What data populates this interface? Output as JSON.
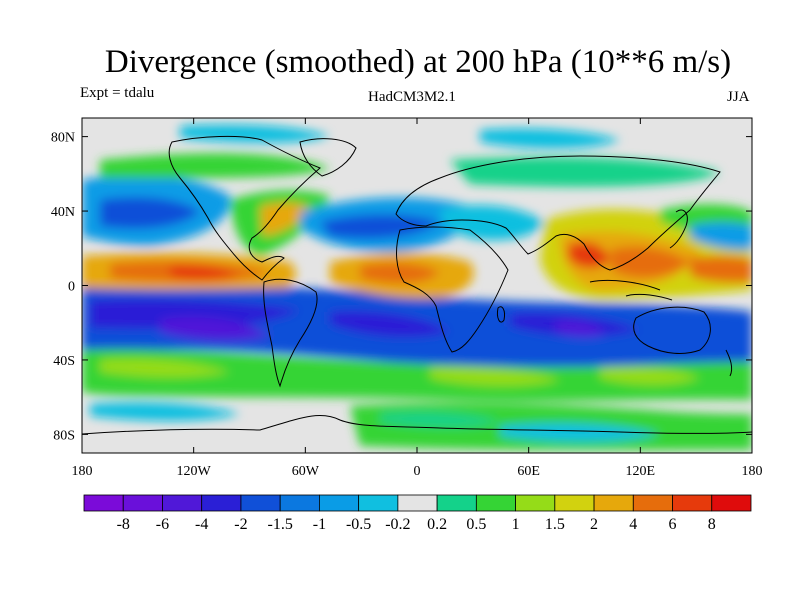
{
  "title": "Divergence (smoothed) at 200 hPa (10**6 m/s)",
  "expt": "Expt = tdalu",
  "model": "HadCM3M2.1",
  "season": "JJA",
  "axes": {
    "x_ticks": [
      {
        "value": -180,
        "label": "180"
      },
      {
        "value": -120,
        "label": "120W"
      },
      {
        "value": -60,
        "label": "60W"
      },
      {
        "value": 0,
        "label": "0"
      },
      {
        "value": 60,
        "label": "60E"
      },
      {
        "value": 120,
        "label": "120E"
      },
      {
        "value": 180,
        "label": "180"
      }
    ],
    "y_ticks": [
      {
        "value": 80,
        "label": "80N"
      },
      {
        "value": 40,
        "label": "40N"
      },
      {
        "value": 0,
        "label": "0"
      },
      {
        "value": -40,
        "label": "40S"
      },
      {
        "value": -80,
        "label": "80S"
      }
    ]
  },
  "colorbar": {
    "colors": [
      "#7b0bd9",
      "#6a10da",
      "#5018d8",
      "#2a1fd6",
      "#1050d8",
      "#0b78e0",
      "#0a9ce6",
      "#10bfe0",
      "#e4e4e4",
      "#14d28a",
      "#35d435",
      "#95dc18",
      "#d2d20f",
      "#e6a80c",
      "#e66d0c",
      "#e63a0c",
      "#df0c0c"
    ],
    "labels": [
      "-8",
      "-6",
      "-4",
      "-2",
      "-1.5",
      "-1",
      "-0.5",
      "-0.2",
      "0.2",
      "0.5",
      "1",
      "1.5",
      "2",
      "4",
      "6",
      "8"
    ]
  },
  "chart_data": {
    "type": "heatmap",
    "title": "Divergence (smoothed) at 200 hPa (10**6 m/s)",
    "projection": "cylindrical equidistant",
    "xlim": [
      -180,
      180
    ],
    "ylim": [
      -90,
      90
    ],
    "levels": [
      -8,
      -6,
      -4,
      -2,
      -1.5,
      -1,
      -0.5,
      -0.2,
      0.2,
      0.5,
      1,
      1.5,
      2,
      4,
      6,
      8
    ],
    "features": [
      {
        "lon": -110,
        "lat": 8,
        "value": 6
      },
      {
        "lon": -150,
        "lat": 8,
        "value": 4
      },
      {
        "lon": -10,
        "lat": 5,
        "value": 6
      },
      {
        "lon": 20,
        "lat": 3,
        "value": 4
      },
      {
        "lon": 90,
        "lat": 15,
        "value": 8
      },
      {
        "lon": 115,
        "lat": 10,
        "value": 4
      },
      {
        "lon": 150,
        "lat": 8,
        "value": 4
      },
      {
        "lon": 135,
        "lat": 30,
        "value": 2
      },
      {
        "lon": 90,
        "lat": 32,
        "value": 1.5
      },
      {
        "lon": -90,
        "lat": 30,
        "value": 2
      },
      {
        "lon": -90,
        "lat": -10,
        "value": -4
      },
      {
        "lon": -150,
        "lat": -5,
        "value": -2
      },
      {
        "lon": -30,
        "lat": -10,
        "value": -2
      },
      {
        "lon": 40,
        "lat": -15,
        "value": -2
      },
      {
        "lon": 100,
        "lat": -20,
        "value": -2
      },
      {
        "lon": -50,
        "lat": 30,
        "value": -2
      },
      {
        "lon": -150,
        "lat": 30,
        "value": -2
      },
      {
        "lon": 20,
        "lat": 35,
        "value": -1
      },
      {
        "lon": 170,
        "lat": 35,
        "value": -1
      },
      {
        "lon": -30,
        "lat": -40,
        "value": 1
      },
      {
        "lon": 60,
        "lat": -40,
        "value": 1
      },
      {
        "lon": 150,
        "lat": -40,
        "value": 1
      },
      {
        "lon": 30,
        "lat": -70,
        "value": 1
      }
    ]
  }
}
